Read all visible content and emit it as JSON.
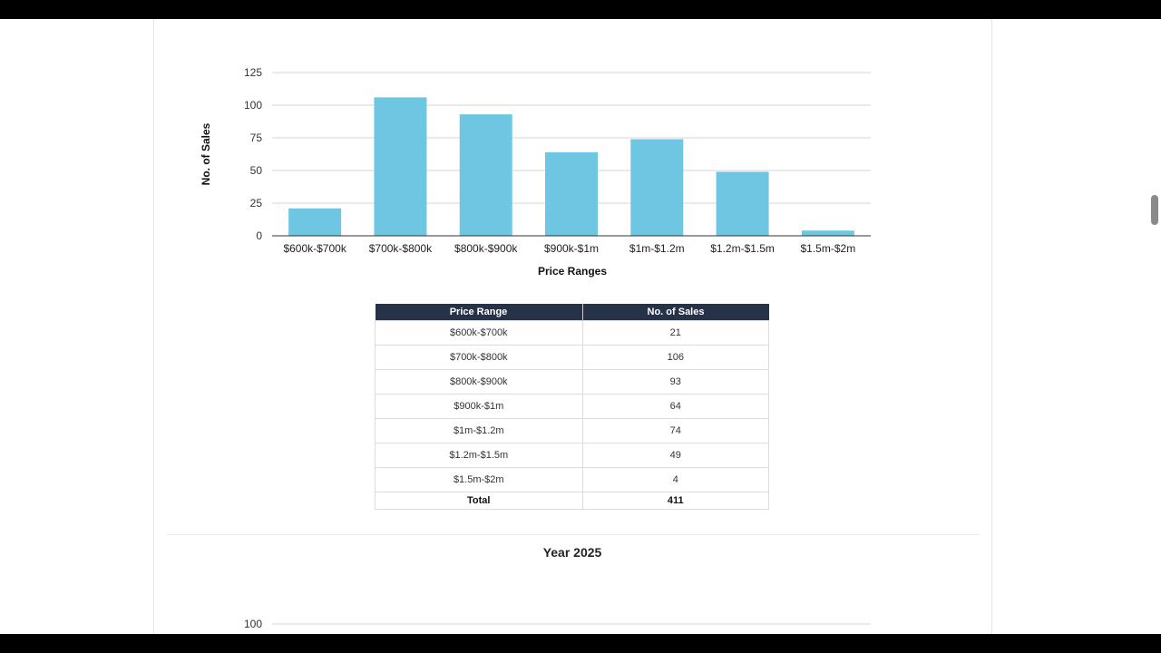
{
  "chart_data": [
    {
      "type": "bar",
      "categories": [
        "$600k-$700k",
        "$700k-$800k",
        "$800k-$900k",
        "$900k-$1m",
        "$1m-$1.2m",
        "$1.2m-$1.5m",
        "$1.5m-$2m"
      ],
      "values": [
        21,
        106,
        93,
        64,
        74,
        49,
        4
      ],
      "xlabel": "Price Ranges",
      "ylabel": "No. of Sales",
      "ylim": [
        0,
        125
      ],
      "yticks": [
        0,
        25,
        50,
        75,
        100,
        125
      ],
      "grid": true,
      "bar_color": "#6ec6e2"
    },
    {
      "type": "bar",
      "title": "Year 2025",
      "yticks_visible": [
        100
      ]
    }
  ],
  "table": {
    "headers": [
      "Price Range",
      "No. of Sales"
    ],
    "rows": [
      [
        "$600k-$700k",
        "21"
      ],
      [
        "$700k-$800k",
        "106"
      ],
      [
        "$800k-$900k",
        "93"
      ],
      [
        "$900k-$1m",
        "64"
      ],
      [
        "$1m-$1.2m",
        "74"
      ],
      [
        "$1.2m-$1.5m",
        "49"
      ],
      [
        "$1.5m-$2m",
        "4"
      ]
    ],
    "total": [
      "Total",
      "411"
    ]
  },
  "colors": {
    "table_header": "#253247",
    "bar": "#6ec6e2"
  }
}
